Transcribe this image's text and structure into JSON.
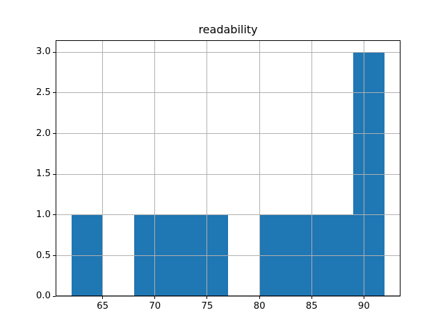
{
  "chart_data": {
    "type": "bar",
    "subtype": "histogram",
    "title": "readability",
    "xlabel": "",
    "ylabel": "",
    "bin_edges": [
      62,
      65,
      68,
      71,
      74,
      77,
      80,
      83,
      86,
      89,
      92
    ],
    "counts": [
      1,
      0,
      1,
      1,
      1,
      0,
      1,
      1,
      1,
      3
    ],
    "xticks": [
      65,
      70,
      75,
      80,
      85,
      90
    ],
    "yticks": [
      0.0,
      0.5,
      1.0,
      1.5,
      2.0,
      2.5,
      3.0
    ],
    "xlim": [
      60.5,
      93.5
    ],
    "ylim": [
      0,
      3.15
    ],
    "grid": true,
    "legend_position": "none",
    "bar_color": "#1f77b4",
    "grid_color": "#b0b0b0",
    "axis_color": "#000000",
    "background_color": "#ffffff"
  }
}
